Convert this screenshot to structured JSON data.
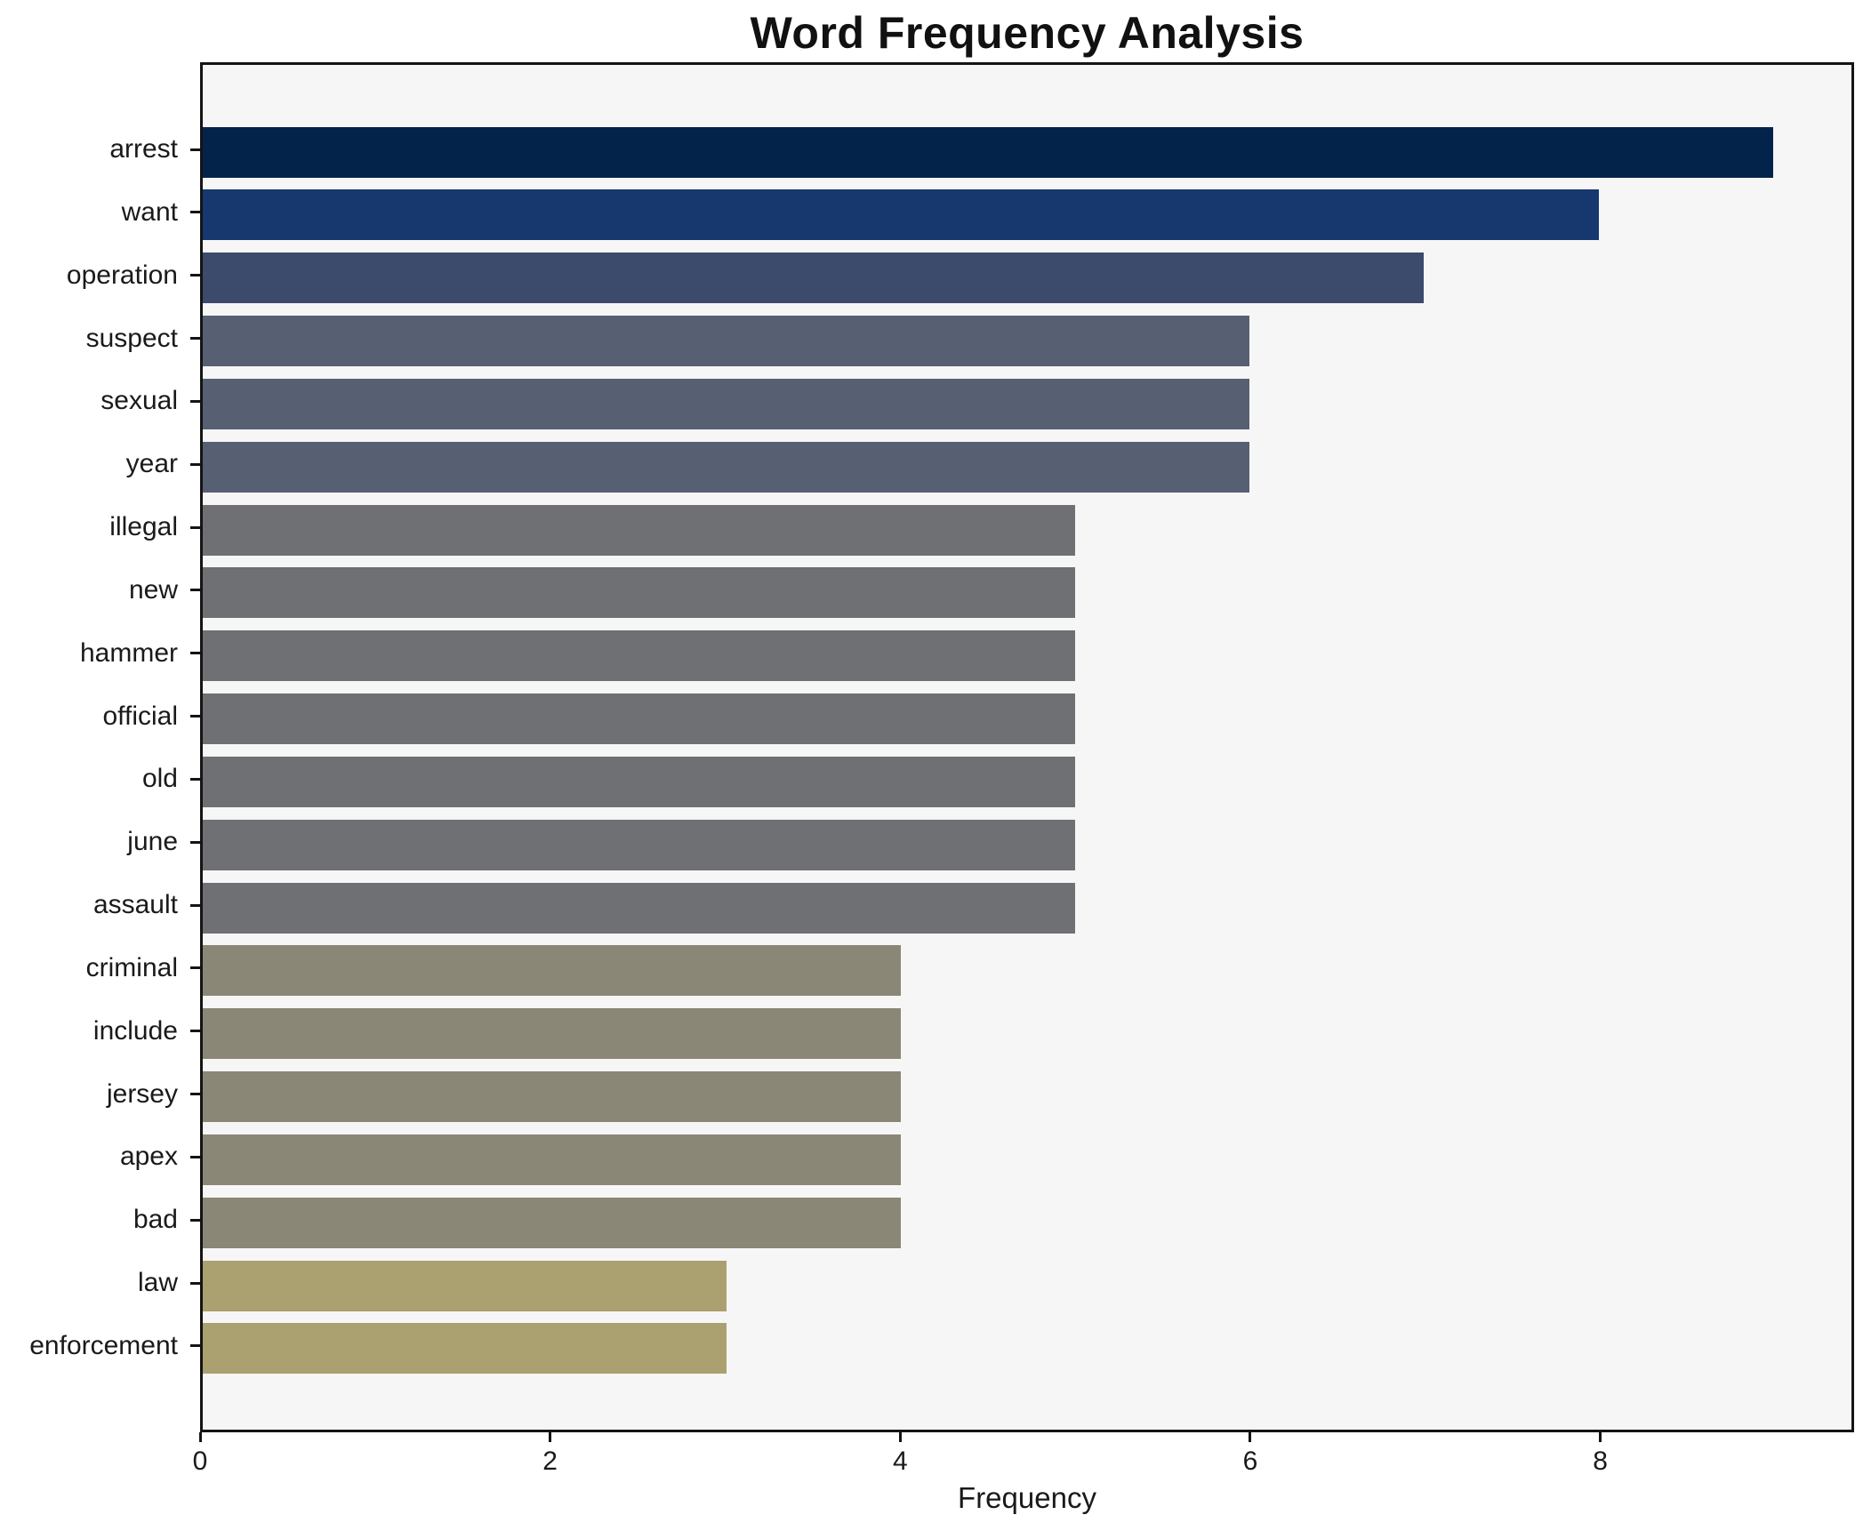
{
  "title": "Word Frequency Analysis",
  "chart_data": {
    "type": "bar",
    "orientation": "horizontal",
    "title": "Word Frequency Analysis",
    "xlabel": "Frequency",
    "ylabel": "",
    "categories": [
      "arrest",
      "want",
      "operation",
      "suspect",
      "sexual",
      "year",
      "illegal",
      "new",
      "hammer",
      "official",
      "old",
      "june",
      "assault",
      "criminal",
      "include",
      "jersey",
      "apex",
      "bad",
      "law",
      "enforcement"
    ],
    "values": [
      9,
      8,
      7,
      6,
      6,
      6,
      5,
      5,
      5,
      5,
      5,
      5,
      5,
      4,
      4,
      4,
      4,
      4,
      3,
      3
    ],
    "bar_colors": [
      "#03234b",
      "#17386e",
      "#3c4a6c",
      "#575f72",
      "#575f72",
      "#575f72",
      "#6f7073",
      "#6f7073",
      "#6f7073",
      "#6f7073",
      "#6f7073",
      "#6f7073",
      "#6f7073",
      "#8a8777",
      "#8a8777",
      "#8a8777",
      "#8a8777",
      "#8a8777",
      "#aba06f",
      "#aba06f"
    ],
    "xlim": [
      0,
      9.45
    ],
    "xticks": [
      0,
      2,
      4,
      6,
      8
    ],
    "grid": false,
    "legend": null,
    "plot_background": "#f6f6f7",
    "figure_background": "#ffffff",
    "colormap_style": "cividis"
  }
}
